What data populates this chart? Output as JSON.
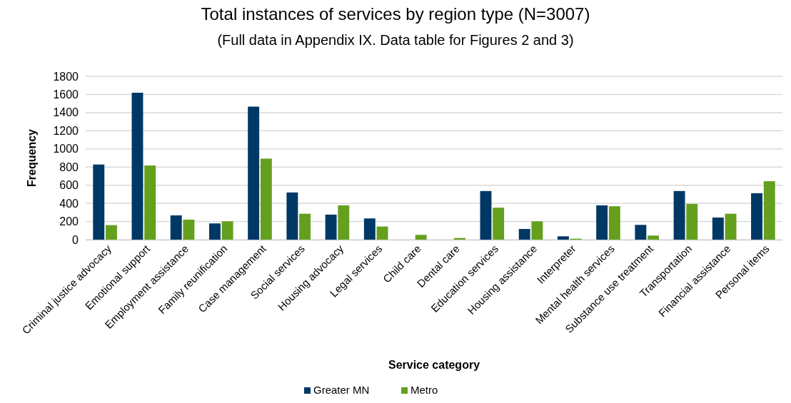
{
  "chart_data": {
    "type": "bar",
    "title": "Total instances of services by region type (N=3007)",
    "subtitle": "(Full data in Appendix IX. Data table for Figures 2 and 3)",
    "xlabel": "Service category",
    "ylabel": "Frequency",
    "categories": [
      "Criminal justice advocacy",
      "Emotional support",
      "Employment assistance",
      "Family reunification",
      "Case management",
      "Social services",
      "Housing advocacy",
      "Legal services",
      "Child care",
      "Dental care",
      "Education services",
      "Housing assistance",
      "Interpreter",
      "Mental health services",
      "Substance use treatment",
      "Transportation",
      "Financial assistance",
      "Personal items"
    ],
    "series": [
      {
        "name": "Greater MN",
        "color": "#003865",
        "values": [
          828,
          1619,
          268,
          179,
          1466,
          520,
          276,
          234,
          0,
          0,
          536,
          118,
          37,
          378,
          163,
          536,
          244,
          512
        ]
      },
      {
        "name": "Metro",
        "color": "#64a01e",
        "values": [
          160,
          817,
          221,
          202,
          893,
          286,
          378,
          145,
          53,
          18,
          352,
          202,
          11,
          368,
          45,
          394,
          286,
          644
        ]
      }
    ],
    "ylim": [
      0,
      1800
    ],
    "yticks": [
      0,
      200,
      400,
      600,
      800,
      1000,
      1200,
      1400,
      1600,
      1800
    ],
    "grid": "y",
    "legend": "bottom"
  }
}
